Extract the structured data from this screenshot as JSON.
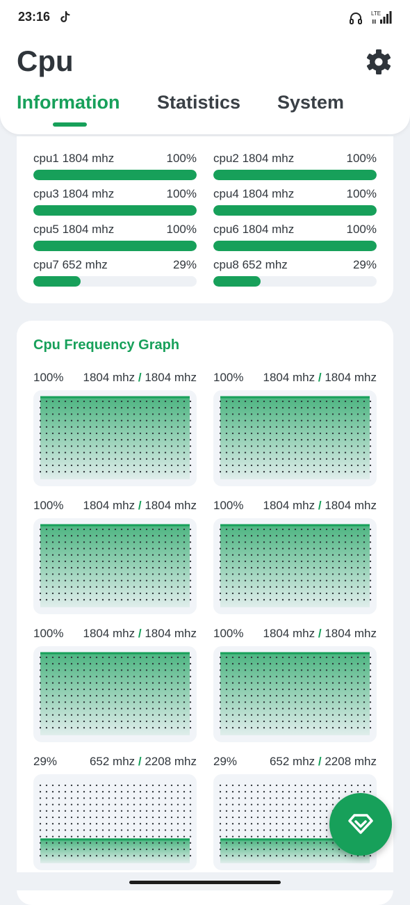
{
  "status_bar": {
    "time": "23:16",
    "network_label": "LTE",
    "icons": [
      "tiktok-icon",
      "headset-icon",
      "signal-icon"
    ]
  },
  "header": {
    "title": "Cpu",
    "settings_icon": "gear-icon",
    "tabs": [
      {
        "label": "Information",
        "active": true
      },
      {
        "label": "Statistics",
        "active": false
      },
      {
        "label": "System",
        "active": false
      }
    ]
  },
  "cores": [
    {
      "label": "cpu1  1804 mhz",
      "percent": "100%",
      "load": 1.0
    },
    {
      "label": "cpu2  1804 mhz",
      "percent": "100%",
      "load": 1.0
    },
    {
      "label": "cpu3  1804 mhz",
      "percent": "100%",
      "load": 1.0
    },
    {
      "label": "cpu4  1804 mhz",
      "percent": "100%",
      "load": 1.0
    },
    {
      "label": "cpu5  1804 mhz",
      "percent": "100%",
      "load": 1.0
    },
    {
      "label": "cpu6  1804 mhz",
      "percent": "100%",
      "load": 1.0
    },
    {
      "label": "cpu7  652 mhz",
      "percent": "29%",
      "load": 0.29
    },
    {
      "label": "cpu8  652 mhz",
      "percent": "29%",
      "load": 0.29
    }
  ],
  "graph_section": {
    "title": "Cpu Frequency Graph",
    "graphs": [
      {
        "percent": "100%",
        "current": "1804 mhz",
        "max": "1804 mhz",
        "history": [
          1,
          1,
          1,
          1,
          1,
          1,
          1,
          1,
          1,
          1,
          1,
          1,
          1,
          1,
          1,
          1,
          1,
          1,
          1,
          1,
          1,
          1,
          1,
          1,
          1,
          1,
          1,
          1,
          1,
          1,
          1,
          1,
          1,
          1,
          1,
          1,
          1,
          1,
          1,
          1,
          1,
          1,
          1,
          1,
          1,
          1,
          1,
          1,
          1,
          1,
          1,
          1,
          1,
          1,
          1,
          1,
          1,
          1,
          1,
          1,
          1,
          1,
          1,
          1,
          1,
          1,
          1,
          1,
          1,
          1,
          1,
          1,
          1,
          1,
          1,
          1,
          1,
          1,
          1,
          1,
          1,
          1,
          1,
          1,
          1,
          1,
          1,
          1,
          1,
          1,
          1
        ]
      },
      {
        "percent": "100%",
        "current": "1804 mhz",
        "max": "1804 mhz",
        "history": [
          1,
          1,
          1,
          1,
          1,
          1,
          1,
          1,
          1,
          1,
          1,
          1,
          1,
          1,
          1,
          1,
          1,
          1,
          1,
          1,
          1,
          1,
          1,
          1,
          1,
          1,
          1,
          1,
          1,
          1,
          1,
          1,
          1,
          1,
          1,
          1,
          1,
          1,
          1,
          1,
          1,
          1,
          1,
          1,
          1,
          1,
          1,
          1,
          1,
          1,
          1,
          1,
          1,
          1,
          1,
          1,
          1,
          1,
          1,
          1,
          1,
          1,
          1,
          1,
          1,
          1,
          1,
          1,
          1,
          1,
          1,
          1,
          1,
          1,
          1,
          1,
          1,
          1,
          1,
          1,
          1,
          1,
          1,
          1,
          1,
          1,
          1,
          1,
          1,
          1,
          1
        ]
      },
      {
        "percent": "100%",
        "current": "1804 mhz",
        "max": "1804 mhz",
        "history": [
          1,
          1,
          1,
          1,
          1,
          1,
          1,
          1,
          1,
          1,
          1,
          1,
          1,
          1,
          1,
          1,
          1,
          1,
          1,
          1,
          1,
          1,
          1,
          1,
          1,
          1,
          1,
          1,
          1,
          1,
          1,
          1,
          1,
          1,
          1,
          1,
          1,
          1,
          1,
          1,
          1,
          1,
          1,
          1,
          1,
          1,
          1,
          1,
          1,
          1,
          1,
          1,
          1,
          1,
          1,
          1,
          1,
          1,
          1,
          1,
          1,
          1,
          1,
          1,
          1,
          1,
          1,
          1,
          1,
          1,
          1,
          1,
          1,
          1,
          1,
          1,
          1,
          1,
          1,
          1,
          1,
          1,
          1,
          1,
          1,
          1,
          1,
          1,
          1,
          1,
          1
        ]
      },
      {
        "percent": "100%",
        "current": "1804 mhz",
        "max": "1804 mhz",
        "history": [
          1,
          1,
          1,
          1,
          1,
          1,
          1,
          1,
          1,
          1,
          1,
          1,
          1,
          1,
          1,
          1,
          1,
          1,
          1,
          1,
          1,
          1,
          1,
          1,
          1,
          1,
          1,
          1,
          1,
          1,
          1,
          1,
          1,
          1,
          1,
          1,
          1,
          1,
          1,
          1,
          1,
          1,
          1,
          1,
          1,
          1,
          1,
          1,
          1,
          1,
          1,
          1,
          1,
          1,
          1,
          1,
          1,
          1,
          1,
          1,
          1,
          1,
          1,
          1,
          1,
          1,
          1,
          1,
          1,
          1,
          1,
          1,
          1,
          1,
          1,
          1,
          1,
          1,
          1,
          1,
          1,
          1,
          1,
          1,
          1,
          1,
          1,
          1,
          1,
          1,
          1
        ]
      },
      {
        "percent": "100%",
        "current": "1804 mhz",
        "max": "1804 mhz",
        "history": [
          1,
          1,
          1,
          1,
          1,
          1,
          1,
          1,
          1,
          1,
          1,
          1,
          1,
          1,
          1,
          1,
          1,
          1,
          1,
          1,
          1,
          1,
          1,
          1,
          1,
          1,
          1,
          1,
          1,
          1,
          1,
          1,
          1,
          1,
          1,
          1,
          1,
          1,
          1,
          1,
          1,
          1,
          1,
          1,
          1,
          1,
          1,
          1,
          1,
          1,
          1,
          1,
          1,
          1,
          1,
          1,
          1,
          1,
          1,
          1,
          1,
          1,
          1,
          1,
          1,
          1,
          1,
          1,
          1,
          1,
          1,
          1,
          1,
          1,
          1,
          1,
          1,
          1,
          1,
          1,
          1,
          1,
          1,
          1,
          1,
          1,
          1,
          1,
          1,
          1,
          1
        ]
      },
      {
        "percent": "100%",
        "current": "1804 mhz",
        "max": "1804 mhz",
        "history": [
          1,
          1,
          1,
          1,
          1,
          1,
          1,
          1,
          1,
          1,
          1,
          1,
          1,
          1,
          1,
          1,
          1,
          1,
          1,
          1,
          1,
          1,
          1,
          1,
          1,
          1,
          1,
          1,
          1,
          1,
          1,
          1,
          1,
          1,
          1,
          1,
          1,
          1,
          1,
          1,
          1,
          1,
          1,
          1,
          1,
          1,
          1,
          1,
          1,
          1,
          1,
          1,
          1,
          1,
          1,
          1,
          1,
          1,
          1,
          1,
          1,
          1,
          1,
          1,
          1,
          1,
          1,
          1,
          1,
          1,
          1,
          1,
          1,
          1,
          1,
          1,
          1,
          1,
          1,
          1,
          1,
          1,
          1,
          1,
          1,
          1,
          1,
          1,
          1,
          1,
          1
        ]
      },
      {
        "percent": "29%",
        "current": "652 mhz",
        "max": "2208 mhz",
        "history": [
          0.29,
          0.29,
          0.29,
          0.29,
          0.29,
          0.29,
          0.29,
          0.29,
          0.29,
          0.29,
          0.29,
          0.29,
          0.29,
          0.29,
          0.29,
          0.29,
          0.29,
          0.29,
          0.29,
          0.29,
          0.29,
          0.29,
          0.29,
          0.29,
          0.29,
          0.29,
          0.29,
          0.29,
          0.29,
          0.29,
          0.29,
          0.29,
          0.29,
          0.29,
          0.29,
          0.29,
          0.29,
          0.29,
          0.29,
          0.29,
          0.29,
          0.29,
          0.29,
          0.29,
          0.29,
          0.29,
          0.29,
          0.29,
          0.29,
          0.29,
          0.29,
          0.29,
          0.29,
          0.29,
          0.29,
          0.29,
          0.29,
          0.29,
          0.29,
          0.29,
          0.29,
          0.29,
          0.29,
          0.29,
          0.29,
          0.29,
          0.29,
          0.29,
          0.29,
          0.29,
          0.29,
          0.29,
          0.29,
          0.29,
          0.29,
          0.29,
          0.29,
          0.29,
          0.29,
          0.29,
          0.29,
          0.29,
          0.29,
          0.29,
          0.29,
          0.29,
          0.29,
          0.29,
          0.29,
          0.29,
          0.29
        ]
      },
      {
        "percent": "29%",
        "current": "652 mhz",
        "max": "2208 mhz",
        "history": [
          0.29,
          0.29,
          0.29,
          0.29,
          0.29,
          0.29,
          0.29,
          0.29,
          0.29,
          0.29,
          0.29,
          0.29,
          0.29,
          0.29,
          0.29,
          0.29,
          0.29,
          0.29,
          0.29,
          0.29,
          0.29,
          0.29,
          0.29,
          0.29,
          0.29,
          0.29,
          0.29,
          0.29,
          0.29,
          0.29,
          0.29,
          0.29,
          0.29,
          0.29,
          0.29,
          0.29,
          0.29,
          0.29,
          0.29,
          0.29,
          0.29,
          0.29,
          0.29,
          0.29,
          0.29,
          0.29,
          0.29,
          0.29,
          0.29,
          0.29,
          0.29,
          0.29,
          0.29,
          0.29,
          0.29,
          0.29,
          0.29,
          0.29,
          0.29,
          0.29,
          0.29,
          0.29,
          0.29,
          0.29,
          0.29,
          0.29,
          0.29,
          0.29,
          0.29,
          0.29,
          0.29,
          0.29,
          0.29,
          0.29,
          0.29,
          0.29,
          0.29,
          0.29,
          0.29,
          0.29,
          0.29,
          0.29,
          0.29,
          0.29,
          0.29,
          0.29,
          0.29,
          0.29,
          0.29,
          0.29,
          0.29
        ]
      }
    ]
  },
  "fab": {
    "icon": "chevron-down-icon"
  },
  "colors": {
    "accent": "#17a05a",
    "background": "#eef1f5",
    "card": "#ffffff",
    "graph_bg": "#f1f4f8"
  }
}
